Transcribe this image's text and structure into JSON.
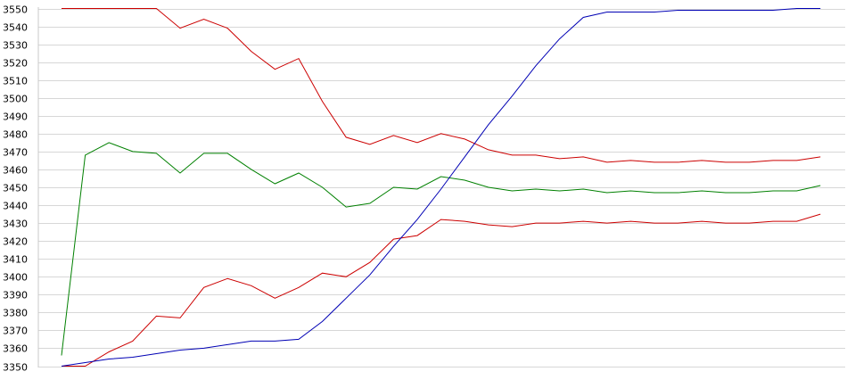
{
  "chart_data": {
    "type": "line",
    "title": "",
    "xlabel": "",
    "ylabel": "",
    "ylim": [
      3350,
      3550
    ],
    "yticks": [
      3350,
      3360,
      3370,
      3380,
      3390,
      3400,
      3410,
      3420,
      3430,
      3440,
      3450,
      3460,
      3470,
      3480,
      3490,
      3500,
      3510,
      3520,
      3530,
      3540,
      3550
    ],
    "grid": true,
    "legend": "none",
    "x": [
      0,
      1,
      2,
      3,
      4,
      5,
      6,
      7,
      8,
      9,
      10,
      11,
      12,
      13,
      14,
      15,
      16,
      17,
      18,
      19,
      20,
      21,
      22,
      23,
      24,
      25,
      26,
      27,
      28,
      29,
      30,
      31,
      32
    ],
    "series": [
      {
        "color": "#cc0000",
        "values": [
          3550,
          3550,
          3550,
          3550,
          3550,
          3539,
          3544,
          3539,
          3526,
          3516,
          3522,
          3498,
          3478,
          3474,
          3479,
          3475,
          3480,
          3477,
          3471,
          3468,
          3468,
          3466,
          3467,
          3464,
          3465,
          3464,
          3464,
          3465,
          3464,
          3464,
          3465,
          3465,
          3467
        ]
      },
      {
        "color": "#008000",
        "values": [
          3356,
          3468,
          3475,
          3470,
          3469,
          3458,
          3469,
          3469,
          3460,
          3452,
          3458,
          3450,
          3439,
          3441,
          3450,
          3449,
          3456,
          3454,
          3450,
          3448,
          3449,
          3448,
          3449,
          3447,
          3448,
          3447,
          3447,
          3448,
          3447,
          3447,
          3448,
          3448,
          3451
        ]
      },
      {
        "color": "#cc0000",
        "values": [
          3350,
          3350,
          3358,
          3364,
          3378,
          3377,
          3394,
          3399,
          3395,
          3388,
          3394,
          3402,
          3400,
          3408,
          3421,
          3423,
          3432,
          3431,
          3429,
          3428,
          3430,
          3430,
          3431,
          3430,
          3431,
          3430,
          3430,
          3431,
          3430,
          3430,
          3431,
          3431,
          3435
        ]
      },
      {
        "color": "#0000b4",
        "values": [
          3350,
          3352,
          3354,
          3355,
          3357,
          3359,
          3360,
          3362,
          3364,
          3364,
          3365,
          3375,
          3388,
          3401,
          3417,
          3432,
          3449,
          3467,
          3485,
          3501,
          3518,
          3533,
          3545,
          3548,
          3548,
          3548,
          3549,
          3549,
          3549,
          3549,
          3549,
          3550,
          3550
        ]
      }
    ]
  }
}
